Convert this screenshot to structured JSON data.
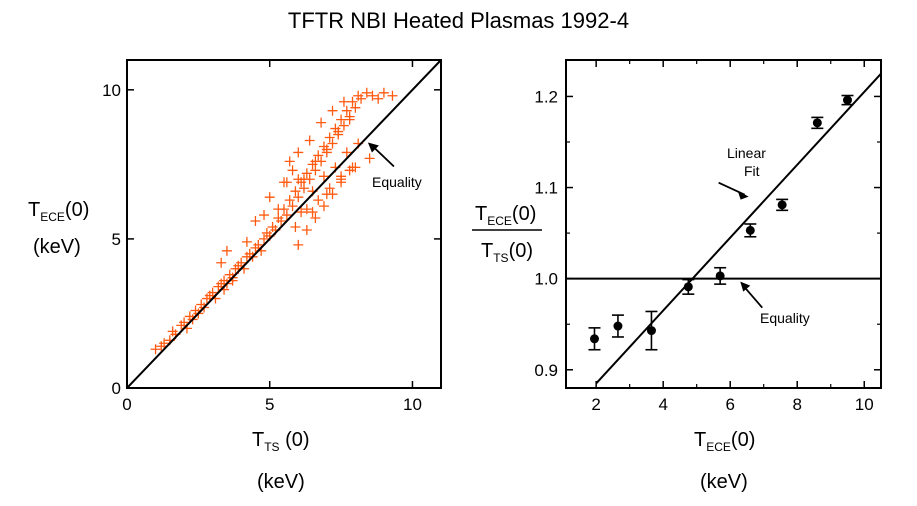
{
  "title": "TFTR NBI Heated Plasmas 1992-4",
  "chart_data": [
    {
      "type": "scatter",
      "marker": "plus",
      "color": "#ff5a10",
      "xlabel": {
        "main": "T",
        "sub": "TS",
        "after": " (0)",
        "unit": "(keV)"
      },
      "ylabel": {
        "main": "T",
        "sub": "ECE",
        "after": "(0)",
        "unit": "(keV)"
      },
      "xlim": [
        0,
        11
      ],
      "ylim": [
        0,
        11
      ],
      "xticks": [
        0,
        5,
        10
      ],
      "yticks": [
        0,
        5,
        10
      ],
      "xtick_labels": [
        "0",
        "5",
        "10"
      ],
      "ytick_labels": [
        "0",
        "5",
        "10"
      ],
      "reference_line": {
        "label": "Equality",
        "slope": 1,
        "intercept": 0
      },
      "annotation_arrow_point": [
        8.3,
        8.3
      ],
      "x": [
        1.0,
        1.2,
        1.3,
        1.5,
        1.6,
        1.7,
        1.9,
        2.0,
        2.1,
        2.2,
        2.3,
        2.4,
        2.5,
        2.6,
        2.7,
        2.8,
        2.9,
        3.0,
        3.1,
        3.2,
        3.3,
        3.4,
        3.5,
        3.6,
        3.7,
        3.8,
        3.9,
        4.0,
        4.1,
        4.2,
        4.3,
        4.4,
        4.5,
        4.6,
        4.7,
        4.8,
        4.9,
        5.0,
        5.1,
        5.2,
        5.3,
        5.4,
        5.5,
        5.6,
        5.7,
        5.8,
        5.9,
        6.0,
        6.1,
        6.2,
        6.3,
        6.4,
        6.5,
        6.6,
        6.7,
        6.8,
        6.9,
        7.0,
        7.1,
        7.2,
        7.3,
        7.4,
        7.5,
        7.6,
        7.7,
        7.8,
        7.9,
        8.0,
        8.1,
        8.2,
        8.4,
        8.6,
        8.8,
        9.0,
        9.3,
        3.3,
        3.4,
        3.5,
        3.7,
        3.9,
        4.2,
        4.5,
        4.8,
        5.0,
        5.3,
        5.6,
        5.8,
        6.0,
        6.2,
        6.4,
        6.6,
        6.8,
        7.0,
        7.2,
        7.4,
        7.6,
        7.8,
        5.9,
        6.1,
        6.3,
        6.5,
        6.7,
        6.9,
        7.1,
        7.3,
        7.5,
        7.7,
        7.9,
        8.1,
        6.0,
        6.3,
        6.6,
        6.9,
        7.2,
        7.5,
        7.8,
        5.5,
        5.7,
        6.0,
        6.5,
        7.0,
        7.5,
        8.0,
        8.5
      ],
      "y": [
        1.3,
        1.4,
        1.5,
        1.6,
        1.9,
        1.8,
        2.1,
        2.2,
        2.0,
        2.4,
        2.3,
        2.6,
        2.5,
        2.8,
        2.7,
        3.0,
        3.1,
        3.2,
        3.0,
        3.4,
        3.5,
        3.6,
        3.5,
        3.8,
        3.7,
        4.0,
        4.1,
        4.2,
        4.0,
        4.4,
        4.5,
        4.4,
        4.7,
        4.8,
        4.6,
        5.0,
        5.2,
        5.1,
        5.4,
        5.3,
        5.7,
        5.6,
        6.0,
        5.8,
        6.3,
        6.1,
        6.6,
        6.4,
        6.9,
        6.7,
        7.2,
        7.0,
        7.5,
        7.3,
        7.8,
        7.6,
        8.1,
        7.9,
        8.4,
        8.2,
        8.7,
        8.5,
        9.0,
        8.8,
        9.3,
        9.1,
        9.6,
        9.4,
        9.8,
        9.7,
        9.9,
        9.8,
        9.7,
        9.9,
        9.8,
        4.2,
        3.3,
        4.6,
        3.6,
        4.0,
        4.9,
        5.6,
        5.8,
        6.4,
        6.0,
        6.9,
        7.3,
        7.9,
        7.0,
        8.3,
        7.6,
        8.9,
        8.0,
        9.3,
        8.6,
        9.6,
        9.0,
        5.4,
        5.9,
        6.0,
        6.6,
        6.3,
        7.1,
        6.7,
        7.4,
        7.0,
        7.9,
        7.4,
        8.2,
        4.8,
        5.3,
        5.7,
        6.1,
        6.5,
        6.9,
        7.3,
        6.9,
        7.6,
        7.0,
        5.9,
        6.5,
        7.1,
        7.4,
        7.7
      ]
    },
    {
      "type": "scatter",
      "marker": "circle-errorbar",
      "ylabel": {
        "num_main": "T",
        "num_sub": "ECE",
        "num_after": "(0)",
        "den_main": "T",
        "den_sub": "TS",
        "den_after": "(0)"
      },
      "xlabel": {
        "main": "T",
        "sub": "ECE",
        "after": "(0)",
        "unit": "(keV)"
      },
      "xlim": [
        1.1,
        10.5
      ],
      "ylim": [
        0.88,
        1.24
      ],
      "xticks": [
        2,
        4,
        6,
        8,
        10
      ],
      "yticks": [
        0.9,
        1.0,
        1.1,
        1.2
      ],
      "xtick_labels": [
        "2",
        "4",
        "6",
        "8",
        "10"
      ],
      "ytick_labels": [
        "0.9",
        "1.0",
        "1.1",
        "1.2"
      ],
      "x": [
        1.95,
        2.65,
        3.65,
        4.75,
        5.7,
        6.6,
        7.55,
        8.6,
        9.5
      ],
      "y": [
        0.934,
        0.948,
        0.943,
        0.991,
        1.003,
        1.053,
        1.081,
        1.171,
        1.196
      ],
      "yerr": [
        0.012,
        0.012,
        0.021,
        0.008,
        0.009,
        0.007,
        0.006,
        0.006,
        0.005
      ],
      "fit_line": {
        "label": "Linear\nFit",
        "x": [
          2.0,
          10.5
        ],
        "y": [
          0.885,
          1.225
        ]
      },
      "equality_line": {
        "label": "Equality",
        "y": 1.0
      },
      "fit_arrow_point": [
        6.55,
        1.09
      ],
      "equality_arrow_point": [
        6.3,
        1.0
      ]
    }
  ]
}
